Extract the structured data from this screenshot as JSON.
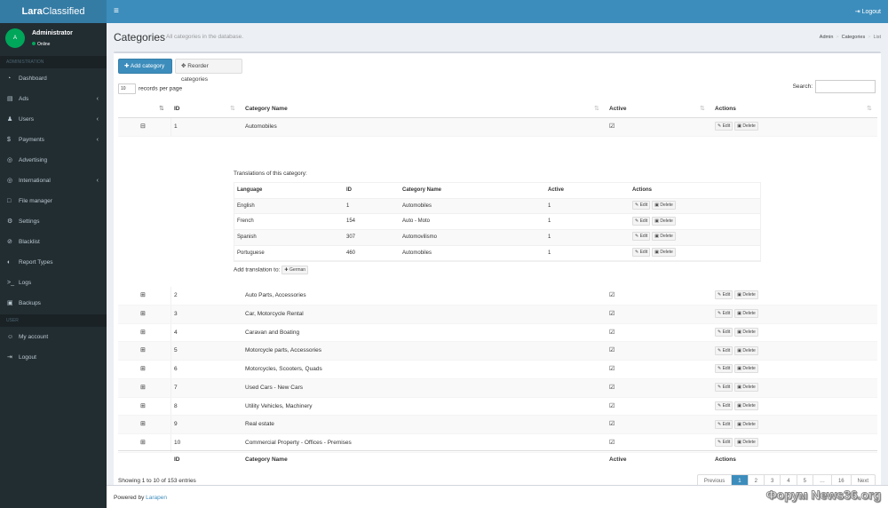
{
  "app": {
    "logo_bold": "Lara",
    "logo_rest": "Classified",
    "toggle_label": "≡",
    "logout_label": "Logout"
  },
  "user": {
    "avatar_initial": "A",
    "name": "Administrator",
    "status": "Online"
  },
  "sidebar": {
    "section_admin": "ADMINISTRATION",
    "section_user": "USER",
    "admin_items": [
      {
        "label": "Dashboard",
        "icon": "dashboard-icon",
        "glyph": "◔",
        "chev": ""
      },
      {
        "label": "Ads",
        "icon": "table-icon",
        "glyph": "▤",
        "chev": "‹"
      },
      {
        "label": "Users",
        "icon": "users-icon",
        "glyph": "♟",
        "chev": "‹"
      },
      {
        "label": "Payments",
        "icon": "dollar-icon",
        "glyph": "$",
        "chev": "‹"
      },
      {
        "label": "Advertising",
        "icon": "globe-icon",
        "glyph": "◎",
        "chev": ""
      },
      {
        "label": "International",
        "icon": "globe-icon",
        "glyph": "◎",
        "chev": "‹"
      },
      {
        "label": "File manager",
        "icon": "file-icon",
        "glyph": "□",
        "chev": ""
      },
      {
        "label": "Settings",
        "icon": "gear-icon",
        "glyph": "⚙",
        "chev": ""
      },
      {
        "label": "Blacklist",
        "icon": "ban-icon",
        "glyph": "⊘",
        "chev": ""
      },
      {
        "label": "Report Types",
        "icon": "report-icon",
        "glyph": "◐",
        "chev": ""
      },
      {
        "label": "Logs",
        "icon": "terminal-icon",
        "glyph": ">_",
        "chev": ""
      },
      {
        "label": "Backups",
        "icon": "database-icon",
        "glyph": "▣",
        "chev": ""
      }
    ],
    "user_items": [
      {
        "label": "My account",
        "icon": "user-icon",
        "glyph": "☺",
        "chev": ""
      },
      {
        "label": "Logout",
        "icon": "sign-out-icon",
        "glyph": "⇥",
        "chev": ""
      }
    ]
  },
  "page": {
    "title": "Categories",
    "subtitle": "All categories in the database.",
    "breadcrumb": [
      "Admin",
      "Categories",
      "List"
    ]
  },
  "toolbar": {
    "add_label": "Add category",
    "reorder_label": "Reorder categories"
  },
  "table": {
    "length_value": "10",
    "length_label": "records per page",
    "search_label": "Search:",
    "columns": [
      "ID",
      "Category Name",
      "Active",
      "Actions"
    ],
    "edit_label": "Edit",
    "delete_label": "Delete",
    "rows": [
      {
        "id": "1",
        "name": "Automobiles"
      },
      {
        "id": "2",
        "name": "Auto Parts, Accessories"
      },
      {
        "id": "3",
        "name": "Car, Motorcycle Rental"
      },
      {
        "id": "4",
        "name": "Caravan and Boating"
      },
      {
        "id": "5",
        "name": "Motorcycle parts, Accessories"
      },
      {
        "id": "6",
        "name": "Motorcycles, Scooters, Quads"
      },
      {
        "id": "7",
        "name": "Used Cars - New Cars"
      },
      {
        "id": "8",
        "name": "Utility Vehicles, Machinery"
      },
      {
        "id": "9",
        "name": "Real estate"
      },
      {
        "id": "10",
        "name": "Commercial Property - Offices - Premises"
      }
    ],
    "info": "Showing 1 to 10 of 153 entries"
  },
  "translations": {
    "title": "Translations of this category:",
    "columns": [
      "Language",
      "ID",
      "Category Name",
      "Active",
      "Actions"
    ],
    "rows": [
      {
        "language": "English",
        "id": "1",
        "name": "Automobiles",
        "active": "1"
      },
      {
        "language": "French",
        "id": "154",
        "name": "Auto - Moto",
        "active": "1"
      },
      {
        "language": "Spanish",
        "id": "307",
        "name": "Automovilismo",
        "active": "1"
      },
      {
        "language": "Portuguese",
        "id": "460",
        "name": "Automobiles",
        "active": "1"
      }
    ],
    "add_label": "Add translation to:",
    "add_lang": "German"
  },
  "pagination": [
    "Previous",
    "1",
    "2",
    "3",
    "4",
    "5",
    "…",
    "16",
    "Next"
  ],
  "footer": {
    "powered_label": "Powered by",
    "powered_link": "Larapen"
  },
  "watermark": "Форум News36.org"
}
